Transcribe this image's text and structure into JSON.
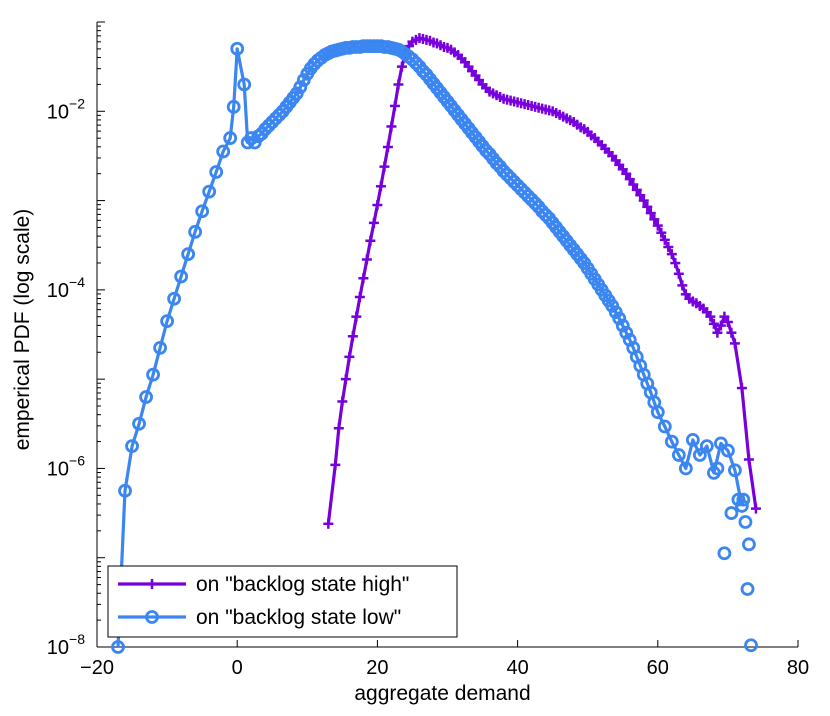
{
  "chart_data": {
    "type": "line",
    "title": "",
    "xlabel": "aggregate demand",
    "ylabel": "emperical PDF (log scale)",
    "xlim": [
      -20,
      80
    ],
    "ylim": [
      1e-08,
      0.1
    ],
    "yscale": "log",
    "grid": false,
    "legend_position": "bottom-left",
    "x_ticks": [
      {
        "value": -20,
        "label": "−20"
      },
      {
        "value": 0,
        "label": "0"
      },
      {
        "value": 20,
        "label": "20"
      },
      {
        "value": 40,
        "label": "40"
      },
      {
        "value": 60,
        "label": "60"
      },
      {
        "value": 80,
        "label": "80"
      }
    ],
    "y_ticks": [
      {
        "exp": -8,
        "base": "10",
        "sup": "−8"
      },
      {
        "exp": -6,
        "base": "10",
        "sup": "−6"
      },
      {
        "exp": -4,
        "base": "10",
        "sup": "−4"
      },
      {
        "exp": -2,
        "base": "10",
        "sup": "−2"
      }
    ],
    "series": [
      {
        "name": "on \"backlog state high\"",
        "color": "#7700dd",
        "marker": "plus",
        "points": [
          [
            13,
            -6.62
          ],
          [
            14,
            -5.96
          ],
          [
            14.5,
            -5.55
          ],
          [
            15,
            -5.25
          ],
          [
            15.5,
            -5.0
          ],
          [
            16,
            -4.75
          ],
          [
            16.5,
            -4.52
          ],
          [
            17,
            -4.3
          ],
          [
            17.5,
            -4.08
          ],
          [
            18,
            -3.87
          ],
          [
            18.5,
            -3.66
          ],
          [
            19,
            -3.45
          ],
          [
            19.5,
            -3.25
          ],
          [
            20,
            -3.05
          ],
          [
            20.5,
            -2.84
          ],
          [
            21,
            -2.62
          ],
          [
            21.5,
            -2.4
          ],
          [
            22,
            -2.17
          ],
          [
            22.5,
            -1.94
          ],
          [
            23,
            -1.7
          ],
          [
            23.5,
            -1.5
          ],
          [
            24,
            -1.36
          ],
          [
            24.5,
            -1.27
          ],
          [
            25,
            -1.22
          ],
          [
            25.5,
            -1.2
          ],
          [
            26,
            -1.18
          ],
          [
            26.5,
            -1.19
          ],
          [
            27,
            -1.2
          ],
          [
            27.5,
            -1.21
          ],
          [
            28,
            -1.23
          ],
          [
            28.5,
            -1.24
          ],
          [
            29,
            -1.26
          ],
          [
            29.5,
            -1.28
          ],
          [
            30,
            -1.29
          ],
          [
            30.5,
            -1.31
          ],
          [
            31,
            -1.34
          ],
          [
            31.5,
            -1.37
          ],
          [
            32,
            -1.41
          ],
          [
            32.5,
            -1.45
          ],
          [
            33,
            -1.5
          ],
          [
            33.5,
            -1.55
          ],
          [
            34,
            -1.6
          ],
          [
            34.5,
            -1.65
          ],
          [
            35,
            -1.7
          ],
          [
            35.5,
            -1.74
          ],
          [
            36,
            -1.78
          ],
          [
            36.5,
            -1.8
          ],
          [
            37,
            -1.82
          ],
          [
            37.5,
            -1.84
          ],
          [
            38,
            -1.86
          ],
          [
            38.5,
            -1.87
          ],
          [
            39,
            -1.88
          ],
          [
            39.5,
            -1.89
          ],
          [
            40,
            -1.9
          ],
          [
            40.5,
            -1.91
          ],
          [
            41,
            -1.92
          ],
          [
            41.5,
            -1.93
          ],
          [
            42,
            -1.94
          ],
          [
            42.5,
            -1.95
          ],
          [
            43,
            -1.96
          ],
          [
            43.5,
            -1.97
          ],
          [
            44,
            -1.98
          ],
          [
            44.5,
            -1.99
          ],
          [
            45,
            -2.0
          ],
          [
            45.5,
            -2.02
          ],
          [
            46,
            -2.04
          ],
          [
            46.5,
            -2.06
          ],
          [
            47,
            -2.08
          ],
          [
            47.5,
            -2.1
          ],
          [
            48,
            -2.12
          ],
          [
            48.5,
            -2.15
          ],
          [
            49,
            -2.18
          ],
          [
            49.5,
            -2.2
          ],
          [
            50,
            -2.23
          ],
          [
            50.5,
            -2.27
          ],
          [
            51,
            -2.3
          ],
          [
            51.5,
            -2.34
          ],
          [
            52,
            -2.38
          ],
          [
            52.5,
            -2.42
          ],
          [
            53,
            -2.46
          ],
          [
            53.5,
            -2.5
          ],
          [
            54,
            -2.55
          ],
          [
            54.5,
            -2.6
          ],
          [
            55,
            -2.65
          ],
          [
            55.5,
            -2.7
          ],
          [
            56,
            -2.76
          ],
          [
            56.5,
            -2.82
          ],
          [
            57,
            -2.88
          ],
          [
            57.5,
            -2.94
          ],
          [
            58,
            -3.0
          ],
          [
            58.5,
            -3.07
          ],
          [
            59,
            -3.14
          ],
          [
            59.5,
            -3.21
          ],
          [
            60,
            -3.28
          ],
          [
            60.5,
            -3.36
          ],
          [
            61,
            -3.44
          ],
          [
            61.5,
            -3.52
          ],
          [
            62,
            -3.6
          ],
          [
            62.5,
            -3.7
          ],
          [
            63,
            -3.82
          ],
          [
            63.5,
            -3.95
          ],
          [
            64,
            -4.05
          ],
          [
            64.5,
            -4.1
          ],
          [
            65,
            -4.13
          ],
          [
            65.5,
            -4.15
          ],
          [
            66,
            -4.18
          ],
          [
            66.5,
            -4.21
          ],
          [
            67,
            -4.25
          ],
          [
            67.5,
            -4.3
          ],
          [
            68,
            -4.38
          ],
          [
            68.5,
            -4.48
          ],
          [
            69,
            -4.4
          ],
          [
            69.5,
            -4.3
          ],
          [
            70,
            -4.36
          ],
          [
            70.5,
            -4.48
          ],
          [
            71,
            -4.6
          ],
          [
            72,
            -5.1
          ],
          [
            73,
            -5.9
          ],
          [
            74,
            -6.45
          ]
        ]
      },
      {
        "name": "on \"backlog state low\"",
        "color": "#3b86f0",
        "marker": "circle",
        "points": [
          [
            -17,
            -8.0
          ],
          [
            -16,
            -6.25
          ],
          [
            -15,
            -5.75
          ],
          [
            -14,
            -5.5
          ],
          [
            -13,
            -5.2
          ],
          [
            -12,
            -4.95
          ],
          [
            -11,
            -4.65
          ],
          [
            -10,
            -4.35
          ],
          [
            -9,
            -4.1
          ],
          [
            -8,
            -3.85
          ],
          [
            -7,
            -3.6
          ],
          [
            -6,
            -3.35
          ],
          [
            -5,
            -3.12
          ],
          [
            -4,
            -2.9
          ],
          [
            -3,
            -2.68
          ],
          [
            -2,
            -2.45
          ],
          [
            -1,
            -2.3
          ],
          [
            -0.5,
            -1.95
          ],
          [
            0,
            -1.3
          ],
          [
            1,
            -1.7
          ],
          [
            1.5,
            -2.35
          ],
          [
            2,
            -2.3
          ],
          [
            2.5,
            -2.35
          ],
          [
            3,
            -2.28
          ],
          [
            3.5,
            -2.25
          ],
          [
            4,
            -2.2
          ],
          [
            4.5,
            -2.16
          ],
          [
            5,
            -2.12
          ],
          [
            5.5,
            -2.08
          ],
          [
            6,
            -2.04
          ],
          [
            6.5,
            -2.0
          ],
          [
            7,
            -1.95
          ],
          [
            7.5,
            -1.9
          ],
          [
            8,
            -1.85
          ],
          [
            8.5,
            -1.8
          ],
          [
            9,
            -1.73
          ],
          [
            9.5,
            -1.65
          ],
          [
            10,
            -1.58
          ],
          [
            10.5,
            -1.52
          ],
          [
            11,
            -1.47
          ],
          [
            11.5,
            -1.43
          ],
          [
            12,
            -1.4
          ],
          [
            12.5,
            -1.37
          ],
          [
            13,
            -1.35
          ],
          [
            13.5,
            -1.33
          ],
          [
            14,
            -1.32
          ],
          [
            14.5,
            -1.31
          ],
          [
            15,
            -1.3
          ],
          [
            15.5,
            -1.29
          ],
          [
            16,
            -1.29
          ],
          [
            16.5,
            -1.28
          ],
          [
            17,
            -1.28
          ],
          [
            17.5,
            -1.28
          ],
          [
            18,
            -1.27
          ],
          [
            18.5,
            -1.27
          ],
          [
            19,
            -1.27
          ],
          [
            19.5,
            -1.27
          ],
          [
            20,
            -1.27
          ],
          [
            20.5,
            -1.27
          ],
          [
            21,
            -1.28
          ],
          [
            21.5,
            -1.28
          ],
          [
            22,
            -1.29
          ],
          [
            22.5,
            -1.3
          ],
          [
            23,
            -1.31
          ],
          [
            23.5,
            -1.33
          ],
          [
            24,
            -1.36
          ],
          [
            24.5,
            -1.39
          ],
          [
            25,
            -1.42
          ],
          [
            25.5,
            -1.46
          ],
          [
            26,
            -1.5
          ],
          [
            26.5,
            -1.55
          ],
          [
            27,
            -1.59
          ],
          [
            27.5,
            -1.64
          ],
          [
            28,
            -1.69
          ],
          [
            28.5,
            -1.74
          ],
          [
            29,
            -1.79
          ],
          [
            29.5,
            -1.84
          ],
          [
            30,
            -1.89
          ],
          [
            30.5,
            -1.94
          ],
          [
            31,
            -1.99
          ],
          [
            31.5,
            -2.04
          ],
          [
            32,
            -2.09
          ],
          [
            32.5,
            -2.14
          ],
          [
            33,
            -2.19
          ],
          [
            33.5,
            -2.24
          ],
          [
            34,
            -2.29
          ],
          [
            34.5,
            -2.34
          ],
          [
            35,
            -2.39
          ],
          [
            35.5,
            -2.44
          ],
          [
            36,
            -2.48
          ],
          [
            36.5,
            -2.53
          ],
          [
            37,
            -2.58
          ],
          [
            37.5,
            -2.62
          ],
          [
            38,
            -2.67
          ],
          [
            38.5,
            -2.71
          ],
          [
            39,
            -2.75
          ],
          [
            39.5,
            -2.79
          ],
          [
            40,
            -2.83
          ],
          [
            40.5,
            -2.87
          ],
          [
            41,
            -2.91
          ],
          [
            41.5,
            -2.95
          ],
          [
            42,
            -2.99
          ],
          [
            42.5,
            -3.03
          ],
          [
            43,
            -3.07
          ],
          [
            43.5,
            -3.12
          ],
          [
            44,
            -3.16
          ],
          [
            44.5,
            -3.2
          ],
          [
            45,
            -3.25
          ],
          [
            45.5,
            -3.3
          ],
          [
            46,
            -3.35
          ],
          [
            46.5,
            -3.4
          ],
          [
            47,
            -3.45
          ],
          [
            47.5,
            -3.5
          ],
          [
            48,
            -3.55
          ],
          [
            48.5,
            -3.6
          ],
          [
            49,
            -3.65
          ],
          [
            49.5,
            -3.7
          ],
          [
            50,
            -3.76
          ],
          [
            50.5,
            -3.82
          ],
          [
            51,
            -3.88
          ],
          [
            51.5,
            -3.94
          ],
          [
            52,
            -4.0
          ],
          [
            52.5,
            -4.06
          ],
          [
            53,
            -4.12
          ],
          [
            53.5,
            -4.18
          ],
          [
            54,
            -4.25
          ],
          [
            54.5,
            -4.32
          ],
          [
            55,
            -4.4
          ],
          [
            55.5,
            -4.48
          ],
          [
            56,
            -4.56
          ],
          [
            56.5,
            -4.65
          ],
          [
            57,
            -4.75
          ],
          [
            57.5,
            -4.85
          ],
          [
            58,
            -4.95
          ],
          [
            58.5,
            -5.05
          ],
          [
            59,
            -5.15
          ],
          [
            59.5,
            -5.26
          ],
          [
            60,
            -5.37
          ],
          [
            61,
            -5.53
          ],
          [
            62,
            -5.7
          ],
          [
            63,
            -5.85
          ],
          [
            64,
            -6.0
          ],
          [
            65,
            -5.68
          ],
          [
            66,
            -5.85
          ],
          [
            67,
            -5.75
          ],
          [
            68,
            -6.05
          ],
          [
            69,
            -5.72
          ],
          [
            70,
            -5.8
          ],
          [
            71,
            -6.02
          ],
          [
            72,
            -6.42
          ],
          [
            72.5,
            -6.6
          ],
          [
            73,
            -6.85
          ],
          [
            68.5,
            -6.0
          ],
          [
            69.5,
            -6.95
          ],
          [
            70.5,
            -6.5
          ],
          [
            71.5,
            -6.35
          ],
          [
            72.2,
            -6.35
          ],
          [
            72.8,
            -7.35
          ],
          [
            73.3,
            -7.98
          ]
        ]
      }
    ]
  }
}
